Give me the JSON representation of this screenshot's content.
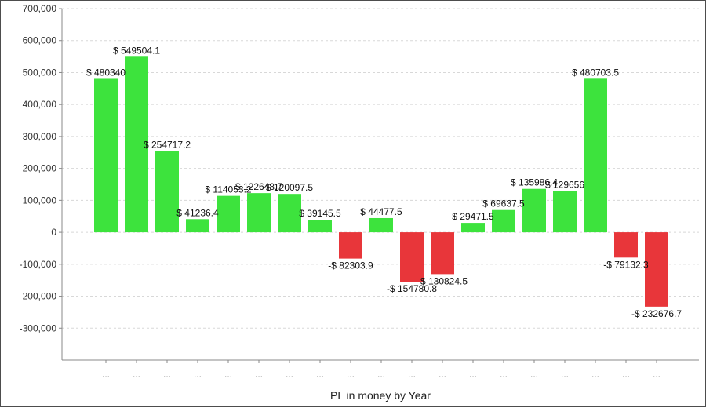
{
  "chart_data": {
    "type": "bar",
    "title": "",
    "xlabel": "PL in money by Year",
    "ylabel": "",
    "ylim": [
      -400000,
      700000
    ],
    "yticks": [
      "700,000",
      "600,000",
      "500,000",
      "400,000",
      "300,000",
      "200,000",
      "100,000",
      "0",
      "-100,000",
      "-200,000",
      "-300,000"
    ],
    "ytick_values": [
      700000,
      600000,
      500000,
      400000,
      300000,
      200000,
      100000,
      0,
      -100000,
      -200000,
      -300000
    ],
    "categories": [
      "...",
      "...",
      "...",
      "...",
      "...",
      "...",
      "...",
      "...",
      "...",
      "...",
      "...",
      "...",
      "...",
      "...",
      "...",
      "...",
      "...",
      "...",
      "..."
    ],
    "values": [
      480340,
      549504.1,
      254717.2,
      41236.4,
      114053.2,
      122648.7,
      120097.5,
      39145.5,
      -82303.9,
      44477.5,
      -154780.8,
      -130824.5,
      29471.5,
      69637.5,
      135986.4,
      129656,
      480703.5,
      -79132.3,
      -232676.7
    ],
    "data_labels": [
      "$ 480340",
      "$ 549504.1",
      "$ 254717.2",
      "$ 41236.4",
      "$ 114053.2",
      "$ 122648.7",
      "$ 120097.5",
      "$ 39145.5",
      "-$ 82303.9",
      "$ 44477.5",
      "-$ 154780.8",
      "-$ 130824.5",
      "$ 29471.5",
      "$ 69637.5",
      "$ 135986.4",
      "$ 129656",
      "$ 480703.5",
      "-$ 79132.3",
      "-$ 232676.7"
    ],
    "grid": true,
    "colors": {
      "positive": "#3de33d",
      "negative": "#e8363a",
      "grid": "#d8d8d8",
      "axis": "#888888"
    }
  }
}
